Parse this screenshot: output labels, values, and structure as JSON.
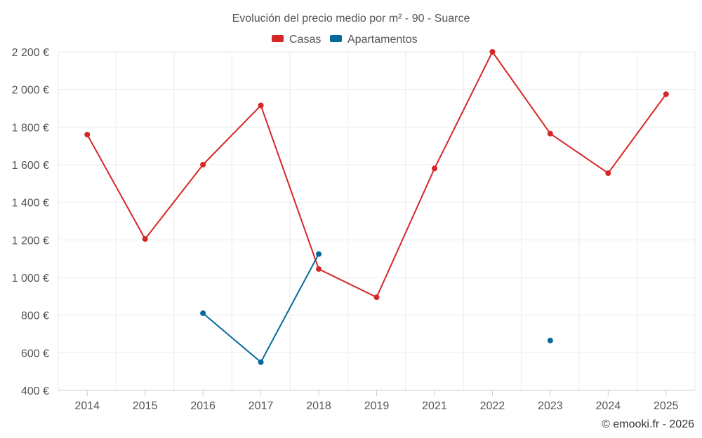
{
  "chart_data": {
    "type": "line",
    "title": "Evolución del precio medio por m² - 90 - Suarce",
    "categories": [
      "2014",
      "2015",
      "2016",
      "2017",
      "2018",
      "2019",
      "2021",
      "2022",
      "2023",
      "2024",
      "2025"
    ],
    "series": [
      {
        "name": "Casas",
        "color": "#d62728",
        "values": [
          1760,
          1205,
          1600,
          1915,
          1045,
          895,
          1580,
          2200,
          1765,
          1555,
          1975
        ]
      },
      {
        "name": "Apartamentos",
        "color": "#06699b",
        "values": [
          null,
          null,
          810,
          550,
          1125,
          null,
          null,
          null,
          665,
          null,
          null
        ]
      }
    ],
    "ylim": [
      400,
      2200
    ],
    "yticks": [
      400,
      600,
      800,
      1000,
      1200,
      1400,
      1600,
      1800,
      2000,
      2200
    ],
    "ytick_labels": [
      "400 €",
      "600 €",
      "800 €",
      "1 000 €",
      "1 200 €",
      "1 400 €",
      "1 600 €",
      "1 800 €",
      "2 000 €",
      "2 200 €"
    ],
    "xlabel": "",
    "ylabel": "",
    "grid": true,
    "legend": "top-center",
    "credit": "© emooki.fr - 2026"
  }
}
